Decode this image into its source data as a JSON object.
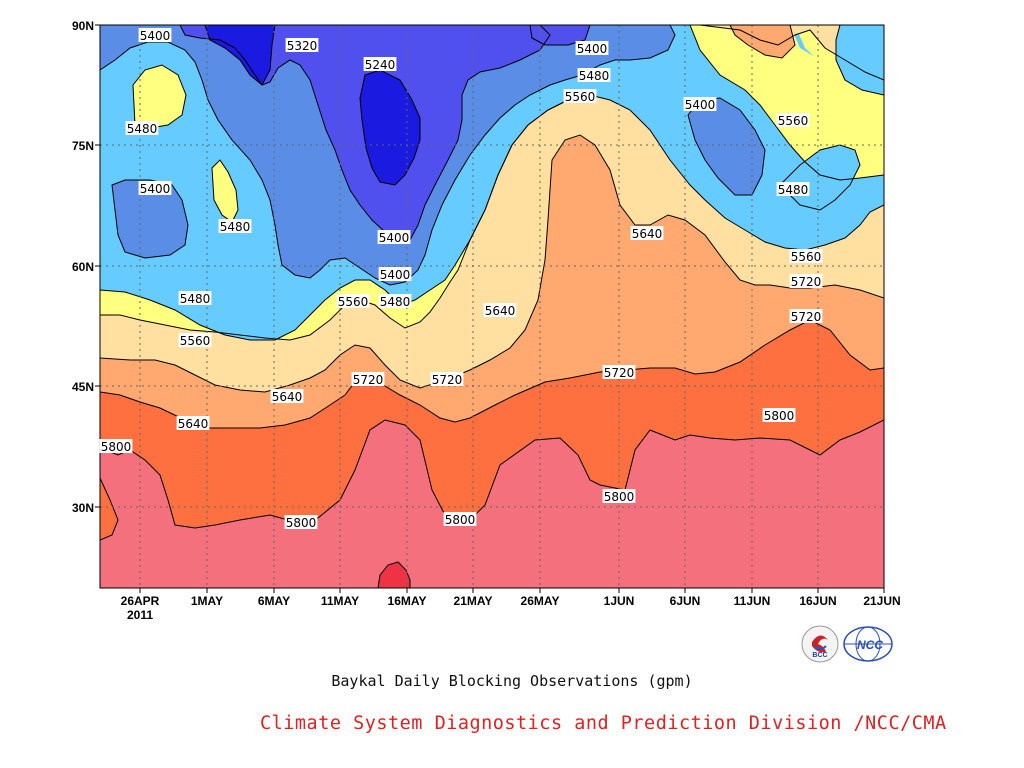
{
  "chart_data": {
    "type": "contour",
    "title": "Baykal Daily Blocking Observations (gpm)",
    "y_ticks": [
      "90N",
      "75N",
      "60N",
      "45N",
      "30N"
    ],
    "y_tick_values": [
      90,
      75,
      60,
      45,
      30
    ],
    "x_ticks": [
      "26APR",
      "1MAY",
      "6MAY",
      "11MAY",
      "16MAY",
      "21MAY",
      "26MAY",
      "1JUN",
      "6JUN",
      "11JUN",
      "16JUN",
      "21JUN"
    ],
    "x_year_label": "2011",
    "ylim": [
      20,
      90
    ],
    "grid": true,
    "contour_levels": [
      5240,
      5320,
      5400,
      5480,
      5560,
      5640,
      5720,
      5800
    ],
    "contour_labels": [
      "5400",
      "5320",
      "5240",
      "5400",
      "5400",
      "5480",
      "5400",
      "5480",
      "5480",
      "5560",
      "5400",
      "5560",
      "5480",
      "5480",
      "5560",
      "5400",
      "5480",
      "5640",
      "5640",
      "5720",
      "5560",
      "5560",
      "5640",
      "5720",
      "5720",
      "5720",
      "5640",
      "5720",
      "5800",
      "5800",
      "5800",
      "5800",
      "5800"
    ],
    "level_colors": {
      "lt_5240": "#1010d8",
      "5240_5320": "#2a2ae6",
      "5320_5400": "#5050ee",
      "5400_5480": "#5a8ee6",
      "5480_5560": "#66ccff",
      "5560_5640": "#ffff80",
      "5640_5720": "#ffe0a0",
      "5720_5800": "#ffa870",
      "gt_5800_a": "#ff7040",
      "gt_5800_b": "#f4707c",
      "max": "#ee3344"
    }
  },
  "caption": "Baykal Daily Blocking Observations (gpm)",
  "credit": "Climate System Diagnostics and Prediction Division /NCC/CMA",
  "logos": {
    "left_text": "BCC",
    "right_text": "NCC"
  }
}
